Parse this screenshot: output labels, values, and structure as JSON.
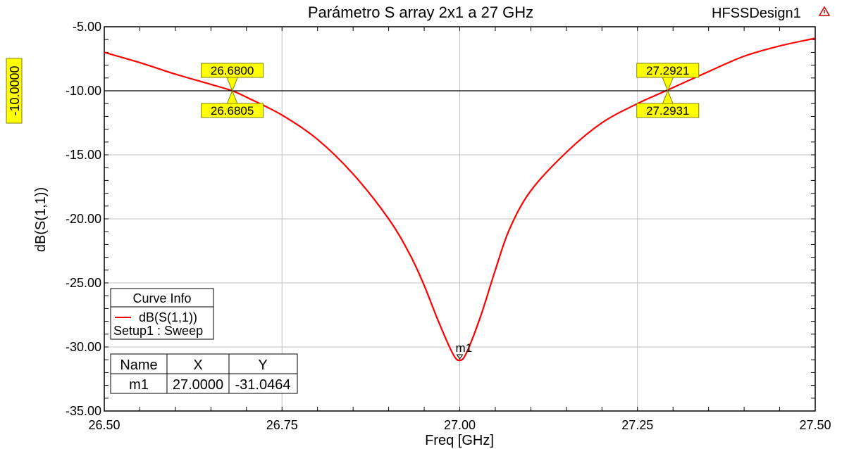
{
  "chart_data": {
    "type": "line",
    "title": "Parámetro S array 2x1 a 27 GHz",
    "design_name": "HFSSDesign1",
    "xlabel": "Freq [GHz]",
    "ylabel": "dB(S(1,1))",
    "xlim": [
      26.5,
      27.5
    ],
    "ylim": [
      -35,
      -5
    ],
    "x_ticks": [
      "26.50",
      "26.75",
      "27.00",
      "27.25",
      "27.50"
    ],
    "y_ticks": [
      "-5.00",
      "-10.00",
      "-15.00",
      "-20.00",
      "-25.00",
      "-30.00",
      "-35.00"
    ],
    "grid": true,
    "series": [
      {
        "name": "dB(S(1,1))",
        "color": "#ff0000",
        "x": [
          26.5,
          26.55,
          26.6,
          26.65,
          26.68,
          26.7,
          26.75,
          26.8,
          26.85,
          26.9,
          26.93,
          26.95,
          26.97,
          26.99,
          27.0,
          27.01,
          27.03,
          27.05,
          27.07,
          27.1,
          27.15,
          27.2,
          27.25,
          27.29,
          27.35,
          27.4,
          27.45,
          27.5
        ],
        "y": [
          -7.0,
          -7.8,
          -8.7,
          -9.5,
          -10.0,
          -10.5,
          -11.9,
          -13.8,
          -16.5,
          -20.0,
          -22.8,
          -25.2,
          -28.0,
          -30.5,
          -31.05,
          -30.4,
          -27.5,
          -24.0,
          -20.8,
          -17.8,
          -14.8,
          -12.5,
          -11.0,
          -10.0,
          -8.5,
          -7.3,
          -6.5,
          -5.9
        ]
      }
    ],
    "ref_line": {
      "y": -10,
      "label": "-10.0000"
    },
    "markers": [
      {
        "name": "m1",
        "x": 27.0,
        "y": -31.0464
      }
    ],
    "crossing_labels": [
      {
        "top": "26.6800",
        "bottom": "26.6805",
        "x": 26.68,
        "y": -10
      },
      {
        "top": "27.2921",
        "bottom": "27.2931",
        "x": 27.2926,
        "y": -10
      }
    ],
    "legend": {
      "title": "Curve Info",
      "entry": "dB(S(1,1))",
      "setup": "Setup1 : Sweep",
      "placement": "bottom-left"
    },
    "marker_table": {
      "headers": [
        "Name",
        "X",
        "Y"
      ],
      "rows": [
        [
          "m1",
          "27.0000",
          "-31.0464"
        ]
      ],
      "placement": "bottom-left"
    }
  }
}
